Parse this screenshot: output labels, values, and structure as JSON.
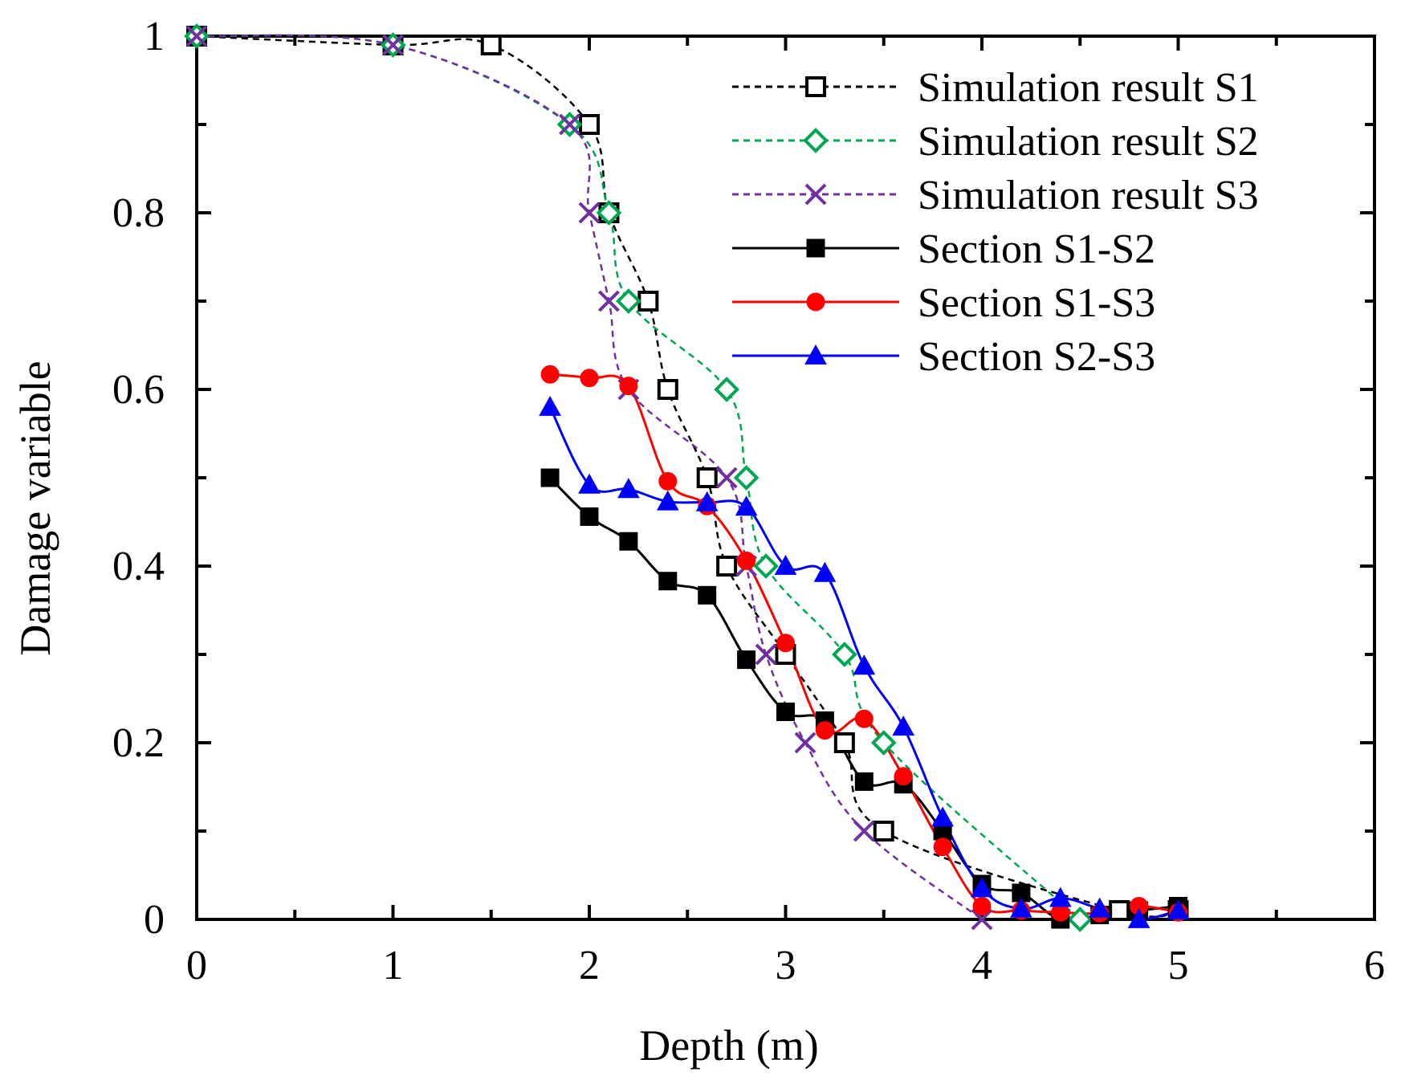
{
  "chart_data": {
    "type": "line",
    "title": "",
    "xlabel": "Depth (m)",
    "ylabel": "Damage variable",
    "xlim": [
      0,
      6
    ],
    "ylim": [
      0,
      1
    ],
    "xticks": [
      0,
      1,
      2,
      3,
      4,
      5,
      6
    ],
    "yticks": [
      0,
      0.2,
      0.4,
      0.6,
      0.8,
      1
    ],
    "xtick_labels": [
      "0",
      "1",
      "2",
      "3",
      "4",
      "5",
      "6"
    ],
    "ytick_labels": [
      "0",
      "0.2",
      "0.4",
      "0.6",
      "0.8",
      "1"
    ],
    "grid": false,
    "legend_position": "top-right",
    "series": [
      {
        "name": "Simulation result S1",
        "color": "#000000",
        "dash": "dashed",
        "marker": "open-square",
        "x": [
          0,
          1,
          1.5,
          2,
          2.1,
          2.3,
          2.4,
          2.6,
          2.7,
          3,
          3.3,
          3.5,
          4.7,
          5
        ],
        "y": [
          1,
          0.99,
          0.99,
          0.9,
          0.8,
          0.7,
          0.6,
          0.5,
          0.4,
          0.3,
          0.2,
          0.1,
          0.01,
          0.01
        ]
      },
      {
        "name": "Simulation result S2",
        "color": "#00A651",
        "dash": "dashed",
        "marker": "open-diamond",
        "x": [
          0,
          1,
          1.9,
          2.1,
          2.2,
          2.7,
          2.8,
          2.9,
          3.3,
          3.5,
          4.5
        ],
        "y": [
          1,
          0.99,
          0.9,
          0.8,
          0.7,
          0.6,
          0.5,
          0.4,
          0.3,
          0.2,
          0.0
        ]
      },
      {
        "name": "Simulation result S3",
        "color": "#7030A0",
        "dash": "dashed",
        "marker": "x",
        "x": [
          0,
          1,
          1.9,
          2.0,
          2.1,
          2.2,
          2.7,
          2.8,
          2.9,
          3.1,
          3.4,
          4.0
        ],
        "y": [
          1,
          0.99,
          0.9,
          0.8,
          0.7,
          0.6,
          0.5,
          0.4,
          0.3,
          0.2,
          0.1,
          0.0
        ]
      },
      {
        "name": "Section S1-S2",
        "color": "#000000",
        "dash": "solid",
        "marker": "filled-square",
        "x": [
          1.8,
          2.0,
          2.2,
          2.4,
          2.6,
          2.8,
          3.0,
          3.2,
          3.4,
          3.6,
          3.8,
          4.0,
          4.2,
          4.4,
          4.6,
          4.8,
          5.0
        ],
        "y": [
          0.5,
          0.456,
          0.428,
          0.383,
          0.367,
          0.294,
          0.235,
          0.225,
          0.156,
          0.153,
          0.1,
          0.04,
          0.03,
          0.0,
          0.005,
          0.01,
          0.015
        ]
      },
      {
        "name": "Section S1-S3",
        "color": "#FF0000",
        "dash": "solid",
        "marker": "filled-circle",
        "x": [
          1.8,
          2.0,
          2.2,
          2.4,
          2.6,
          2.8,
          3.0,
          3.2,
          3.4,
          3.6,
          3.8,
          4.0,
          4.2,
          4.4,
          4.6,
          4.8,
          5.0
        ],
        "y": [
          0.617,
          0.613,
          0.604,
          0.496,
          0.468,
          0.406,
          0.313,
          0.214,
          0.227,
          0.162,
          0.082,
          0.015,
          0.01,
          0.008,
          0.007,
          0.015,
          0.008
        ]
      },
      {
        "name": "Section S2-S3",
        "color": "#0000FF",
        "dash": "solid",
        "marker": "filled-triangle",
        "x": [
          1.8,
          2.0,
          2.2,
          2.4,
          2.6,
          2.8,
          3.0,
          3.2,
          3.4,
          3.6,
          3.8,
          4.0,
          4.2,
          4.4,
          4.6,
          4.8,
          5.0
        ],
        "y": [
          0.58,
          0.492,
          0.487,
          0.473,
          0.472,
          0.467,
          0.4,
          0.392,
          0.287,
          0.218,
          0.115,
          0.035,
          0.012,
          0.024,
          0.012,
          0.0,
          0.01
        ]
      }
    ]
  }
}
